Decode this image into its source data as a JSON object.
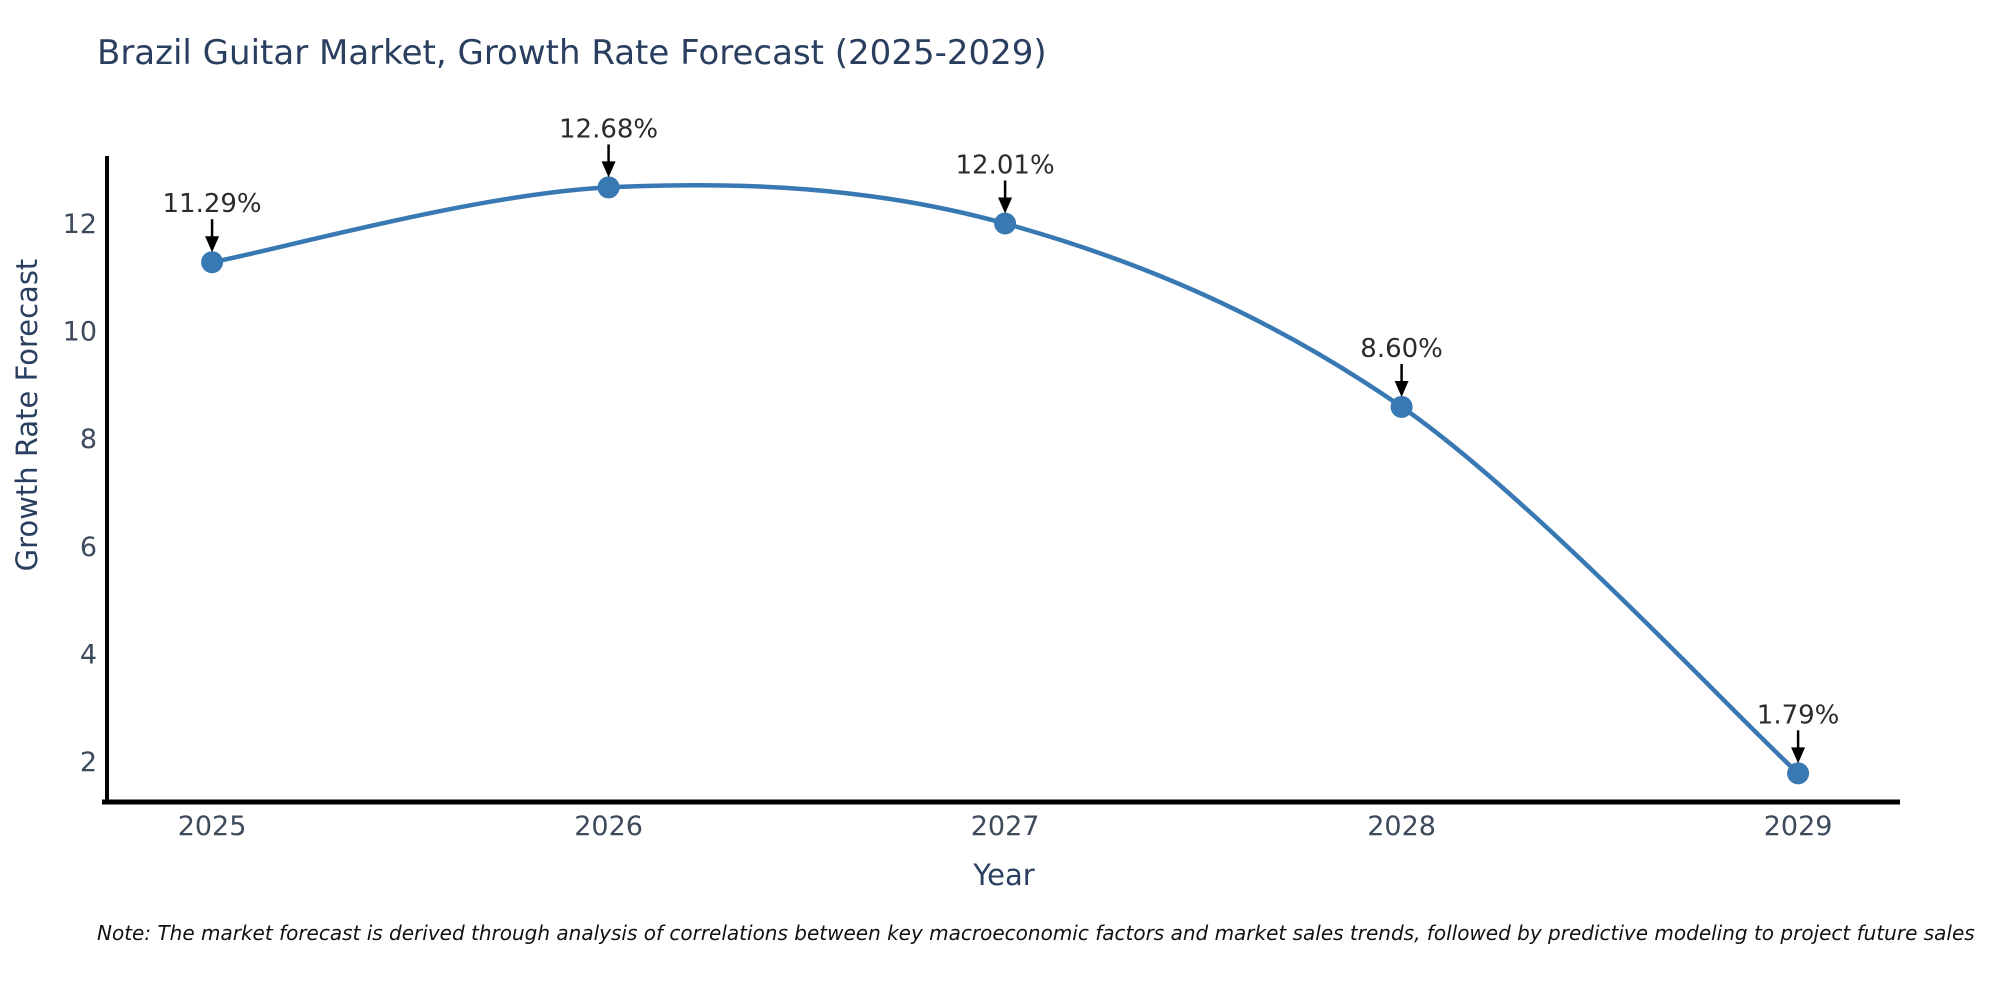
{
  "title": "Brazil Guitar Market, Growth Rate Forecast (2025-2029)",
  "note": "Note: The market forecast is derived through analysis of correlations between key macroeconomic factors and market sales trends, followed by predictive modeling to project future sales",
  "chart_data": {
    "type": "line",
    "title": "Brazil Guitar Market, Growth Rate Forecast (2025-2029)",
    "xlabel": "Year",
    "ylabel": "Growth Rate Forecast",
    "x": [
      2025,
      2026,
      2027,
      2028,
      2029
    ],
    "values": [
      11.29,
      12.68,
      12.01,
      8.6,
      1.79
    ],
    "point_labels": [
      "11.29%",
      "12.68%",
      "12.01%",
      "8.60%",
      "1.79%"
    ],
    "x_tick_labels": [
      "2025",
      "2026",
      "2027",
      "2028",
      "2029"
    ],
    "y_ticks": [
      2,
      4,
      6,
      8,
      10,
      12
    ],
    "xlim": [
      2024.735,
      2029.257
    ],
    "ylim": [
      1.257,
      13.227
    ],
    "grid": false,
    "legend": null,
    "smoothing": "spline",
    "marker_radius": 11,
    "line_width": 4.5,
    "colors": {
      "line": "#3879b4",
      "marker": "#3879b4",
      "annotation_text": "#2b2b2b",
      "arrow": "#000000",
      "spine": "#000000",
      "tick_text": "#3d4a5c",
      "title_text": "#2a3f5f",
      "background": "#ffffff"
    }
  }
}
